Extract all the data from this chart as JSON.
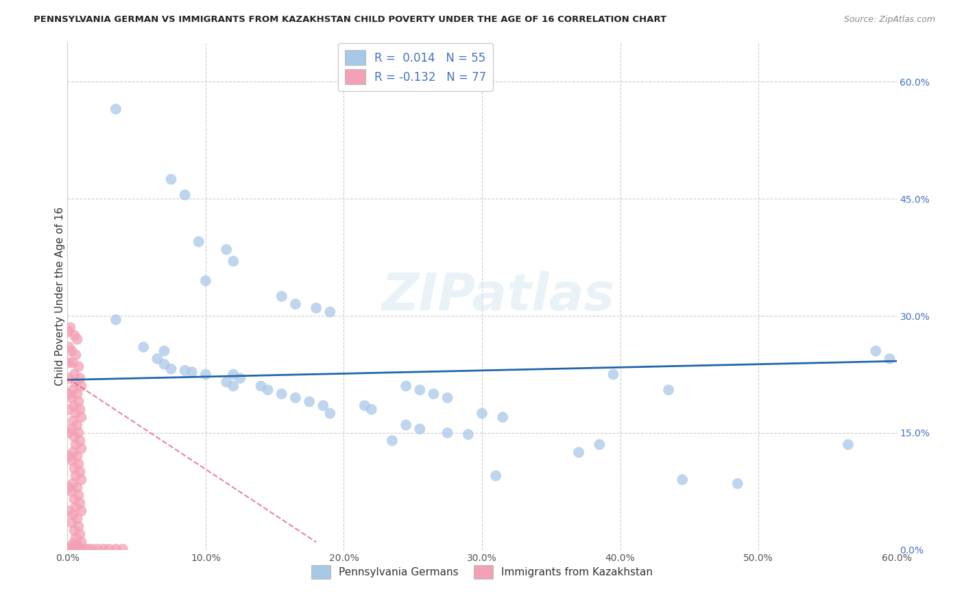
{
  "title": "PENNSYLVANIA GERMAN VS IMMIGRANTS FROM KAZAKHSTAN CHILD POVERTY UNDER THE AGE OF 16 CORRELATION CHART",
  "source": "Source: ZipAtlas.com",
  "ylabel": "Child Poverty Under the Age of 16",
  "xlim": [
    0,
    0.6
  ],
  "ylim": [
    0,
    0.65
  ],
  "blue_color": "#a8c8e8",
  "pink_color": "#f4a0b5",
  "trend_blue_color": "#2166ac",
  "trend_pink_color": "#e05070",
  "legend_label_blue": "Pennsylvania Germans",
  "legend_label_pink": "Immigrants from Kazakhstan",
  "watermark": "ZIPatlas",
  "blue_points": [
    [
      0.035,
      0.565
    ],
    [
      0.075,
      0.475
    ],
    [
      0.085,
      0.455
    ],
    [
      0.095,
      0.395
    ],
    [
      0.115,
      0.385
    ],
    [
      0.12,
      0.37
    ],
    [
      0.1,
      0.345
    ],
    [
      0.155,
      0.325
    ],
    [
      0.165,
      0.315
    ],
    [
      0.18,
      0.31
    ],
    [
      0.19,
      0.305
    ],
    [
      0.035,
      0.295
    ],
    [
      0.055,
      0.26
    ],
    [
      0.07,
      0.255
    ],
    [
      0.065,
      0.245
    ],
    [
      0.07,
      0.238
    ],
    [
      0.075,
      0.232
    ],
    [
      0.085,
      0.23
    ],
    [
      0.09,
      0.228
    ],
    [
      0.1,
      0.225
    ],
    [
      0.12,
      0.225
    ],
    [
      0.125,
      0.22
    ],
    [
      0.115,
      0.215
    ],
    [
      0.12,
      0.21
    ],
    [
      0.14,
      0.21
    ],
    [
      0.145,
      0.205
    ],
    [
      0.155,
      0.2
    ],
    [
      0.165,
      0.195
    ],
    [
      0.175,
      0.19
    ],
    [
      0.185,
      0.185
    ],
    [
      0.245,
      0.21
    ],
    [
      0.255,
      0.205
    ],
    [
      0.265,
      0.2
    ],
    [
      0.275,
      0.195
    ],
    [
      0.215,
      0.185
    ],
    [
      0.22,
      0.18
    ],
    [
      0.19,
      0.175
    ],
    [
      0.3,
      0.175
    ],
    [
      0.315,
      0.17
    ],
    [
      0.245,
      0.16
    ],
    [
      0.255,
      0.155
    ],
    [
      0.275,
      0.15
    ],
    [
      0.29,
      0.148
    ],
    [
      0.235,
      0.14
    ],
    [
      0.385,
      0.135
    ],
    [
      0.37,
      0.125
    ],
    [
      0.435,
      0.205
    ],
    [
      0.395,
      0.225
    ],
    [
      0.31,
      0.095
    ],
    [
      0.445,
      0.09
    ],
    [
      0.485,
      0.085
    ],
    [
      0.565,
      0.135
    ],
    [
      0.585,
      0.255
    ],
    [
      0.595,
      0.245
    ]
  ],
  "pink_points": [
    [
      0.002,
      0.285
    ],
    [
      0.005,
      0.275
    ],
    [
      0.007,
      0.27
    ],
    [
      0.003,
      0.255
    ],
    [
      0.006,
      0.25
    ],
    [
      0.004,
      0.24
    ],
    [
      0.008,
      0.235
    ],
    [
      0.005,
      0.225
    ],
    [
      0.009,
      0.22
    ],
    [
      0.006,
      0.215
    ],
    [
      0.01,
      0.21
    ],
    [
      0.004,
      0.205
    ],
    [
      0.007,
      0.2
    ],
    [
      0.003,
      0.195
    ],
    [
      0.008,
      0.19
    ],
    [
      0.005,
      0.185
    ],
    [
      0.009,
      0.18
    ],
    [
      0.006,
      0.175
    ],
    [
      0.01,
      0.17
    ],
    [
      0.004,
      0.165
    ],
    [
      0.007,
      0.16
    ],
    [
      0.003,
      0.155
    ],
    [
      0.008,
      0.15
    ],
    [
      0.005,
      0.145
    ],
    [
      0.009,
      0.14
    ],
    [
      0.006,
      0.135
    ],
    [
      0.01,
      0.13
    ],
    [
      0.004,
      0.125
    ],
    [
      0.007,
      0.12
    ],
    [
      0.003,
      0.115
    ],
    [
      0.008,
      0.11
    ],
    [
      0.005,
      0.105
    ],
    [
      0.009,
      0.1
    ],
    [
      0.006,
      0.095
    ],
    [
      0.01,
      0.09
    ],
    [
      0.004,
      0.085
    ],
    [
      0.007,
      0.08
    ],
    [
      0.003,
      0.075
    ],
    [
      0.008,
      0.07
    ],
    [
      0.005,
      0.065
    ],
    [
      0.009,
      0.06
    ],
    [
      0.006,
      0.055
    ],
    [
      0.01,
      0.05
    ],
    [
      0.004,
      0.045
    ],
    [
      0.007,
      0.04
    ],
    [
      0.003,
      0.035
    ],
    [
      0.008,
      0.03
    ],
    [
      0.005,
      0.025
    ],
    [
      0.009,
      0.02
    ],
    [
      0.006,
      0.015
    ],
    [
      0.01,
      0.01
    ],
    [
      0.004,
      0.008
    ],
    [
      0.007,
      0.006
    ],
    [
      0.003,
      0.004
    ],
    [
      0.008,
      0.003
    ],
    [
      0.005,
      0.002
    ],
    [
      0.009,
      0.001
    ],
    [
      0.012,
      0.001
    ],
    [
      0.015,
      0.001
    ],
    [
      0.018,
      0.001
    ],
    [
      0.022,
      0.001
    ],
    [
      0.026,
      0.001
    ],
    [
      0.03,
      0.001
    ],
    [
      0.035,
      0.001
    ],
    [
      0.04,
      0.001
    ],
    [
      0.002,
      0.001
    ],
    [
      0.001,
      0.05
    ],
    [
      0.001,
      0.08
    ],
    [
      0.001,
      0.12
    ],
    [
      0.001,
      0.15
    ],
    [
      0.001,
      0.18
    ],
    [
      0.001,
      0.2
    ],
    [
      0.001,
      0.22
    ],
    [
      0.001,
      0.24
    ],
    [
      0.001,
      0.26
    ],
    [
      0.001,
      0.28
    ]
  ],
  "blue_trend_x": [
    0.0,
    0.6
  ],
  "blue_trend_y": [
    0.218,
    0.242
  ],
  "pink_trend_x0": 0.0,
  "pink_trend_x1": 0.18,
  "pink_trend_y0": 0.22,
  "pink_trend_y1": 0.01
}
